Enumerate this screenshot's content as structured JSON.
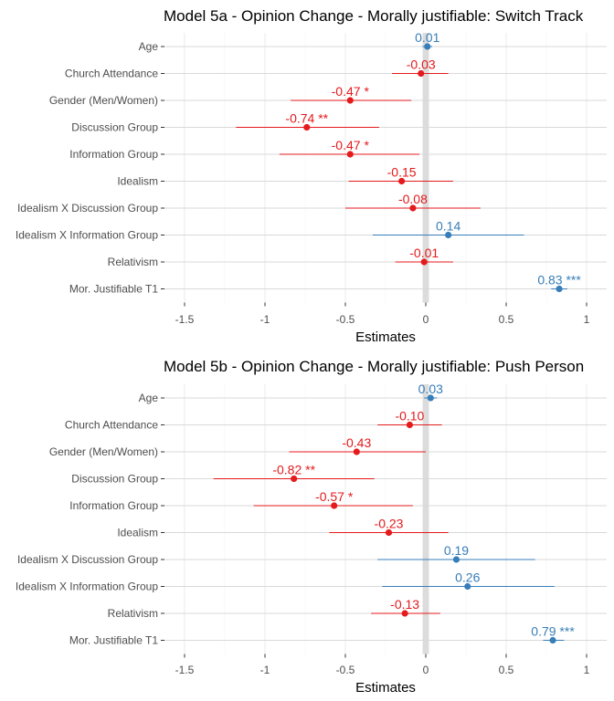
{
  "chart_data": [
    {
      "type": "forest",
      "title": "Model 5a - Opinion Change - Morally justifiable: Switch Track",
      "xlabel": "Estimates",
      "xlim": [
        -1.5,
        1.1
      ],
      "x_ticks": [
        -1.5,
        -1,
        -0.5,
        0,
        0.5,
        1
      ],
      "x_tick_labels": [
        "-1.5",
        "-1",
        "-0.5",
        "0",
        "0.5",
        "1"
      ],
      "grid": true,
      "colors": {
        "positive": "#377eb8",
        "negative": "#e41a1c",
        "zero_line": "#dcdcdc"
      },
      "terms": [
        {
          "label": "Age",
          "estimate": 0.01,
          "ci_low": -0.02,
          "ci_high": 0.04,
          "text": "0.01"
        },
        {
          "label": "Church Attendance",
          "estimate": -0.03,
          "ci_low": -0.21,
          "ci_high": 0.14,
          "text": "-0.03"
        },
        {
          "label": "Gender (Men/Women)",
          "estimate": -0.47,
          "ci_low": -0.84,
          "ci_high": -0.09,
          "text": "-0.47 *"
        },
        {
          "label": "Discussion Group",
          "estimate": -0.74,
          "ci_low": -1.18,
          "ci_high": -0.29,
          "text": "-0.74 **"
        },
        {
          "label": "Information Group",
          "estimate": -0.47,
          "ci_low": -0.91,
          "ci_high": -0.04,
          "text": "-0.47 *"
        },
        {
          "label": "Idealism",
          "estimate": -0.15,
          "ci_low": -0.48,
          "ci_high": 0.17,
          "text": "-0.15"
        },
        {
          "label": "Idealism X Discussion Group",
          "estimate": -0.08,
          "ci_low": -0.5,
          "ci_high": 0.34,
          "text": "-0.08"
        },
        {
          "label": "Idealism X Information Group",
          "estimate": 0.14,
          "ci_low": -0.33,
          "ci_high": 0.61,
          "text": "0.14"
        },
        {
          "label": "Relativism",
          "estimate": -0.01,
          "ci_low": -0.19,
          "ci_high": 0.17,
          "text": "-0.01"
        },
        {
          "label": "Mor. Justifiable T1",
          "estimate": 0.83,
          "ci_low": 0.78,
          "ci_high": 0.88,
          "text": "0.83 ***"
        }
      ]
    },
    {
      "type": "forest",
      "title": "Model 5b - Opinion Change - Morally justifiable: Push Person",
      "xlabel": "Estimates",
      "xlim": [
        -1.5,
        1.1
      ],
      "x_ticks": [
        -1.5,
        -1,
        -0.5,
        0,
        0.5,
        1
      ],
      "x_tick_labels": [
        "-1.5",
        "-1",
        "-0.5",
        "0",
        "0.5",
        "1"
      ],
      "grid": true,
      "colors": {
        "positive": "#377eb8",
        "negative": "#e41a1c",
        "zero_line": "#dcdcdc"
      },
      "terms": [
        {
          "label": "Age",
          "estimate": 0.03,
          "ci_low": -0.01,
          "ci_high": 0.07,
          "text": "0.03"
        },
        {
          "label": "Church Attendance",
          "estimate": -0.1,
          "ci_low": -0.3,
          "ci_high": 0.1,
          "text": "-0.10"
        },
        {
          "label": "Gender (Men/Women)",
          "estimate": -0.43,
          "ci_low": -0.85,
          "ci_high": 0.0,
          "text": "-0.43"
        },
        {
          "label": "Discussion Group",
          "estimate": -0.82,
          "ci_low": -1.32,
          "ci_high": -0.32,
          "text": "-0.82 **"
        },
        {
          "label": "Information Group",
          "estimate": -0.57,
          "ci_low": -1.07,
          "ci_high": -0.08,
          "text": "-0.57 *"
        },
        {
          "label": "Idealism",
          "estimate": -0.23,
          "ci_low": -0.6,
          "ci_high": 0.14,
          "text": "-0.23"
        },
        {
          "label": "Idealism X Discussion Group",
          "estimate": 0.19,
          "ci_low": -0.3,
          "ci_high": 0.68,
          "text": "0.19"
        },
        {
          "label": "Idealism X Information Group",
          "estimate": 0.26,
          "ci_low": -0.27,
          "ci_high": 0.8,
          "text": "0.26"
        },
        {
          "label": "Relativism",
          "estimate": -0.13,
          "ci_low": -0.34,
          "ci_high": 0.09,
          "text": "-0.13"
        },
        {
          "label": "Mor. Justifiable T1",
          "estimate": 0.79,
          "ci_low": 0.73,
          "ci_high": 0.86,
          "text": "0.79 ***"
        }
      ]
    }
  ]
}
